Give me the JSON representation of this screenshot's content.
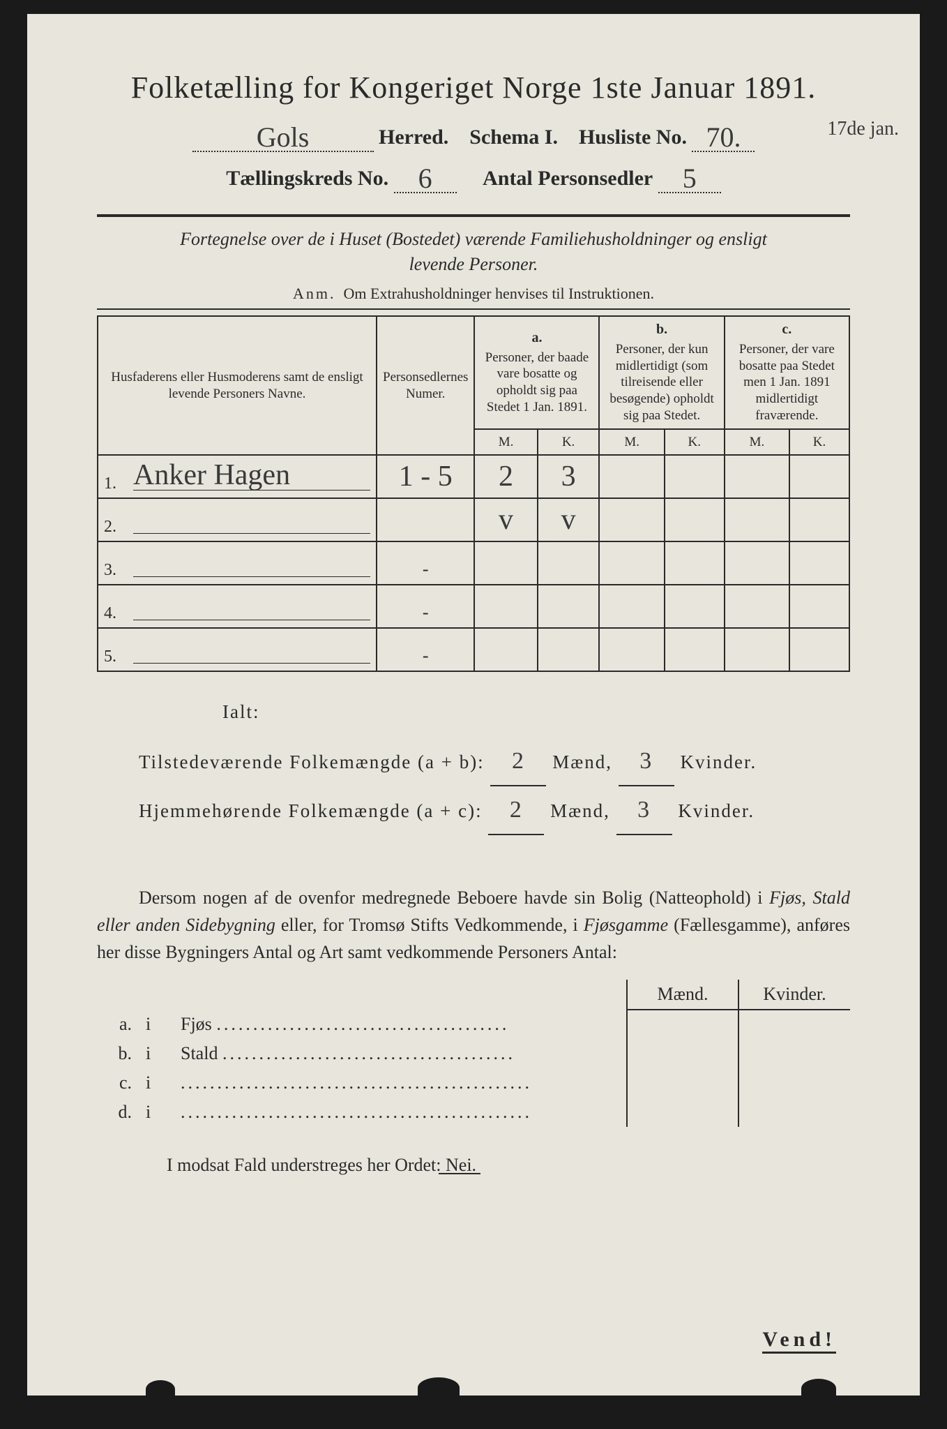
{
  "colors": {
    "page_bg": "#e8e6dc",
    "outer_bg": "#1a1a1a",
    "text": "#2a2a2a",
    "handwriting": "#3a3a3a"
  },
  "typography": {
    "title_pt": 44,
    "body_pt": 26,
    "table_header_pt": 19,
    "cell_pt": 24,
    "handwriting_family": "cursive"
  },
  "header": {
    "title": "Folketælling for Kongeriget Norge 1ste Januar 1891.",
    "herred_value": "Gols",
    "herred_label": "Herred.",
    "schema_label": "Schema I.",
    "husliste_label": "Husliste No.",
    "husliste_value": "70.",
    "side_note": "17de jan.",
    "kreds_label": "Tællingskreds No.",
    "kreds_value": "6",
    "antal_label": "Antal Personsedler",
    "antal_value": "5"
  },
  "subtitle": {
    "line1": "Fortegnelse over de i Huset (Bostedet) værende Familiehusholdninger og ensligt",
    "line2": "levende Personer."
  },
  "anm": {
    "label": "Anm.",
    "text": "Om Extrahusholdninger henvises til Instruktionen."
  },
  "table": {
    "col_name": "Husfaderens eller Husmoderens samt de ensligt levende Personers Navne.",
    "col_num": "Personsedlernes Numer.",
    "col_a_label": "a.",
    "col_a_text": "Personer, der baade vare bosatte og opholdt sig paa Stedet 1 Jan. 1891.",
    "col_b_label": "b.",
    "col_b_text": "Personer, der kun midlertidigt (som tilreisende eller besøgende) opholdt sig paa Stedet.",
    "col_c_label": "c.",
    "col_c_text": "Personer, der vare bosatte paa Stedet men 1 Jan. 1891 midlertidigt fraværende.",
    "m": "M.",
    "k": "K.",
    "rows": [
      {
        "n": "1.",
        "name": "Anker Hagen",
        "num": "1 - 5",
        "a_m": "2",
        "a_k": "3",
        "b_m": "",
        "b_k": "",
        "c_m": "",
        "c_k": ""
      },
      {
        "n": "2.",
        "name": "",
        "num": "",
        "a_m": "v",
        "a_k": "v",
        "b_m": "",
        "b_k": "",
        "c_m": "",
        "c_k": ""
      },
      {
        "n": "3.",
        "name": "",
        "num": "-",
        "a_m": "",
        "a_k": "",
        "b_m": "",
        "b_k": "",
        "c_m": "",
        "c_k": ""
      },
      {
        "n": "4.",
        "name": "",
        "num": "-",
        "a_m": "",
        "a_k": "",
        "b_m": "",
        "b_k": "",
        "c_m": "",
        "c_k": ""
      },
      {
        "n": "5.",
        "name": "",
        "num": "-",
        "a_m": "",
        "a_k": "",
        "b_m": "",
        "b_k": "",
        "c_m": "",
        "c_k": ""
      }
    ]
  },
  "totals": {
    "ialt": "Ialt:",
    "line1_label": "Tilstedeværende Folkemængde (a + b):",
    "line2_label": "Hjemmehørende Folkemængde (a + c):",
    "maend": "Mænd,",
    "kvinder": "Kvinder.",
    "l1_m": "2",
    "l1_k": "3",
    "l2_m": "2",
    "l2_k": "3"
  },
  "paragraph": "Dersom nogen af de ovenfor medregnede Beboere havde sin Bolig (Natteophold) i Fjøs, Stald eller anden Sidebygning eller, for Tromsø Stifts Vedkommende, i Fjøsgamme (Fællesgamme), anføres her disse Bygningers Antal og Art samt vedkommende Personers Antal:",
  "btable": {
    "maend": "Mænd.",
    "kvinder": "Kvinder.",
    "rows": [
      {
        "l": "a.",
        "i": "i",
        "label": "Fjøs"
      },
      {
        "l": "b.",
        "i": "i",
        "label": "Stald"
      },
      {
        "l": "c.",
        "i": "i",
        "label": ""
      },
      {
        "l": "d.",
        "i": "i",
        "label": ""
      }
    ]
  },
  "nei": {
    "prefix": "I modsat Fald understreges her Ordet: ",
    "word": "Nei."
  },
  "vend": "Vend!"
}
